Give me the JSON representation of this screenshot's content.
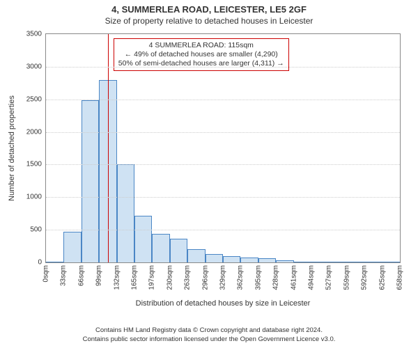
{
  "header": {
    "title": "4, SUMMERLEA ROAD, LEICESTER, LE5 2GF",
    "subtitle": "Size of property relative to detached houses in Leicester"
  },
  "chart": {
    "type": "histogram",
    "ylabel": "Number of detached properties",
    "xlabel": "Distribution of detached houses by size in Leicester",
    "label_fontsize": 11,
    "ylim": [
      0,
      3500
    ],
    "ytick_step": 500,
    "yticks": [
      0,
      500,
      1000,
      1500,
      2000,
      2500,
      3000,
      3500
    ],
    "xticks": [
      "0sqm",
      "33sqm",
      "66sqm",
      "99sqm",
      "132sqm",
      "165sqm",
      "197sqm",
      "230sqm",
      "263sqm",
      "296sqm",
      "329sqm",
      "362sqm",
      "395sqm",
      "428sqm",
      "461sqm",
      "494sqm",
      "527sqm",
      "559sqm",
      "592sqm",
      "625sqm",
      "658sqm"
    ],
    "values": [
      0,
      470,
      2490,
      2800,
      1500,
      720,
      440,
      360,
      200,
      130,
      100,
      70,
      60,
      30,
      0,
      0,
      0,
      0,
      0,
      0
    ],
    "bar_fill": "#cfe2f3",
    "bar_border": "#4a86c5",
    "bar_width_ratio": 1.0,
    "background_color": "#ffffff",
    "grid_color": "#cccccc",
    "axis_color": "#888888",
    "marker": {
      "x_value": 115,
      "x_max": 658,
      "color": "#cc0000"
    },
    "callout": {
      "border_color": "#cc0000",
      "lines": [
        "4 SUMMERLEA ROAD: 115sqm",
        "← 49% of detached houses are smaller (4,290)",
        "50% of semi-detached houses are larger (4,311) →"
      ]
    }
  },
  "footer": {
    "line1": "Contains HM Land Registry data © Crown copyright and database right 2024.",
    "line2": "Contains public sector information licensed under the Open Government Licence v3.0."
  }
}
